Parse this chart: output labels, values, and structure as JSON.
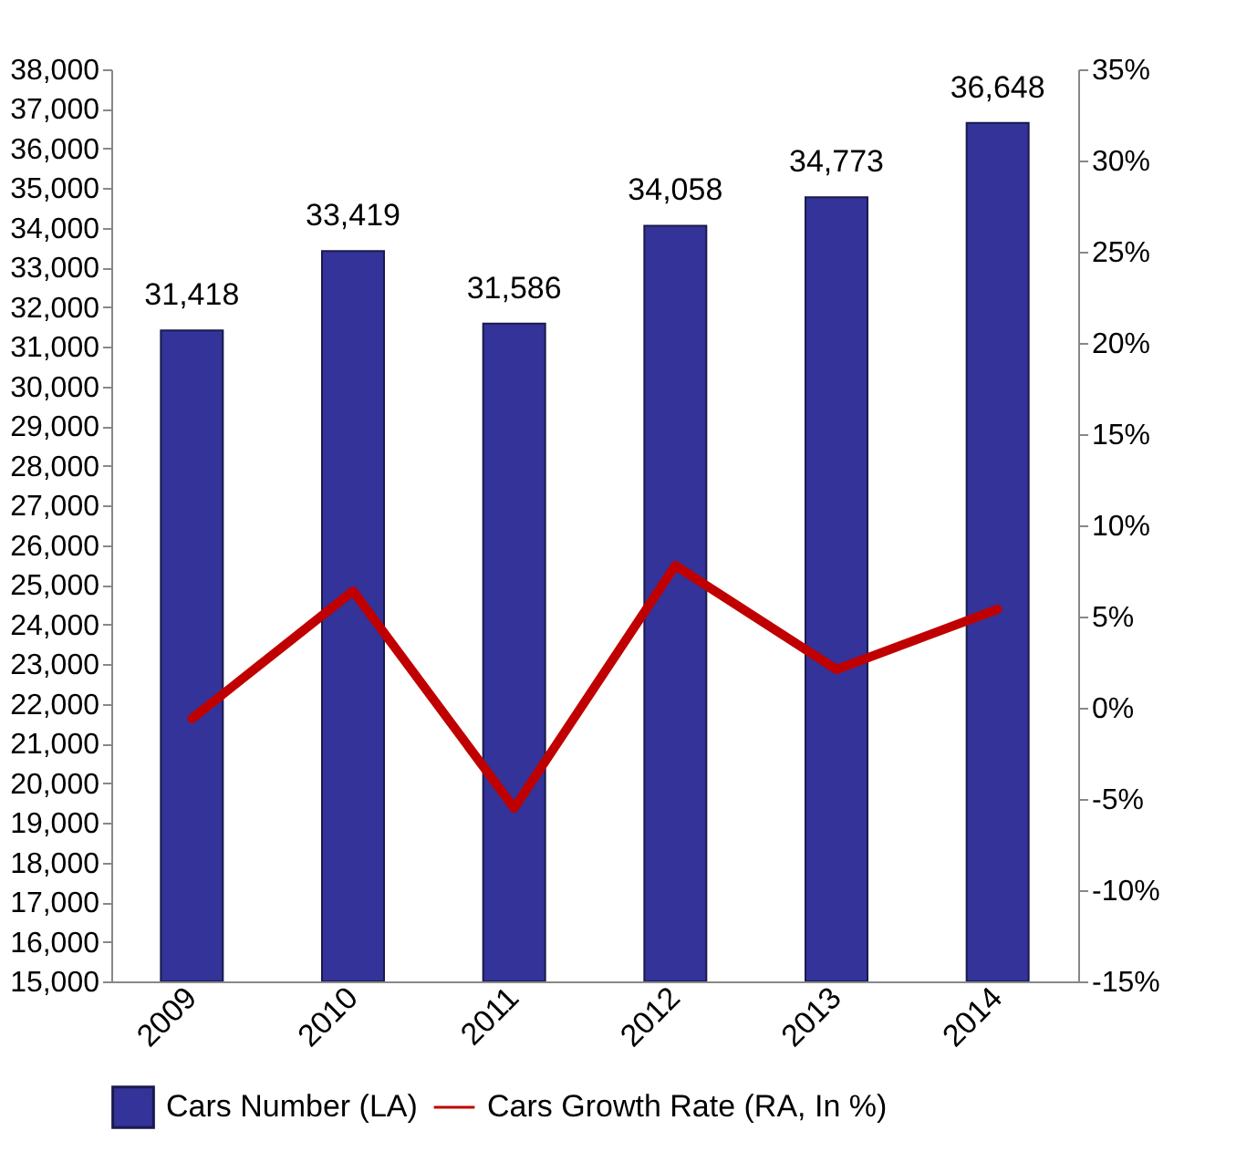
{
  "chart_data": {
    "type": "bar",
    "categories": [
      "2009",
      "2010",
      "2011",
      "2012",
      "2013",
      "2014"
    ],
    "series": [
      {
        "name": "Cars Number (LA)",
        "color": "#333399",
        "values": [
          31418,
          33419,
          31586,
          34058,
          34773,
          36648
        ]
      },
      {
        "name": "Cars Growth Rate (RA, In %)",
        "type": "line",
        "axis": "y2",
        "color": "#c00000",
        "values": [
          -0.6,
          6.4,
          -5.5,
          7.8,
          2.1,
          5.4
        ]
      }
    ],
    "ylim": [
      15000,
      38000
    ],
    "yticks": [
      {
        "value": 15000,
        "label": "15,000"
      },
      {
        "value": 16000,
        "label": "16,000"
      },
      {
        "value": 17000,
        "label": "17,000"
      },
      {
        "value": 18000,
        "label": "18,000"
      },
      {
        "value": 19000,
        "label": "19,000"
      },
      {
        "value": 20000,
        "label": "20,000"
      },
      {
        "value": 21000,
        "label": "21,000"
      },
      {
        "value": 22000,
        "label": "22,000"
      },
      {
        "value": 23000,
        "label": "23,000"
      },
      {
        "value": 24000,
        "label": "24,000"
      },
      {
        "value": 25000,
        "label": "25,000"
      },
      {
        "value": 26000,
        "label": "26,000"
      },
      {
        "value": 27000,
        "label": "27,000"
      },
      {
        "value": 28000,
        "label": "28,000"
      },
      {
        "value": 29000,
        "label": "29,000"
      },
      {
        "value": 30000,
        "label": "30,000"
      },
      {
        "value": 31000,
        "label": "31,000"
      },
      {
        "value": 32000,
        "label": "32,000"
      },
      {
        "value": 33000,
        "label": "33,000"
      },
      {
        "value": 34000,
        "label": "34,000"
      },
      {
        "value": 35000,
        "label": "35,000"
      },
      {
        "value": 36000,
        "label": "36,000"
      },
      {
        "value": 37000,
        "label": "37,000"
      },
      {
        "value": 38000,
        "label": "38,000"
      }
    ],
    "y2lim": [
      -15,
      35
    ],
    "y2ticks": [
      {
        "value": -15,
        "label": "-15%"
      },
      {
        "value": -10,
        "label": "-10%"
      },
      {
        "value": -5,
        "label": "-5%"
      },
      {
        "value": 0,
        "label": "0%"
      },
      {
        "value": 5,
        "label": "5%"
      },
      {
        "value": 10,
        "label": "10%"
      },
      {
        "value": 15,
        "label": "15%"
      },
      {
        "value": 20,
        "label": "20%"
      },
      {
        "value": 25,
        "label": "25%"
      },
      {
        "value": 30,
        "label": "30%"
      },
      {
        "value": 35,
        "label": "35%"
      }
    ],
    "value_labels": [
      "31,418",
      "33,419",
      "31,586",
      "34,058",
      "34,773",
      "36,648"
    ],
    "grid": false,
    "legend": "bottom",
    "marker": "none",
    "line_style": "solid"
  }
}
